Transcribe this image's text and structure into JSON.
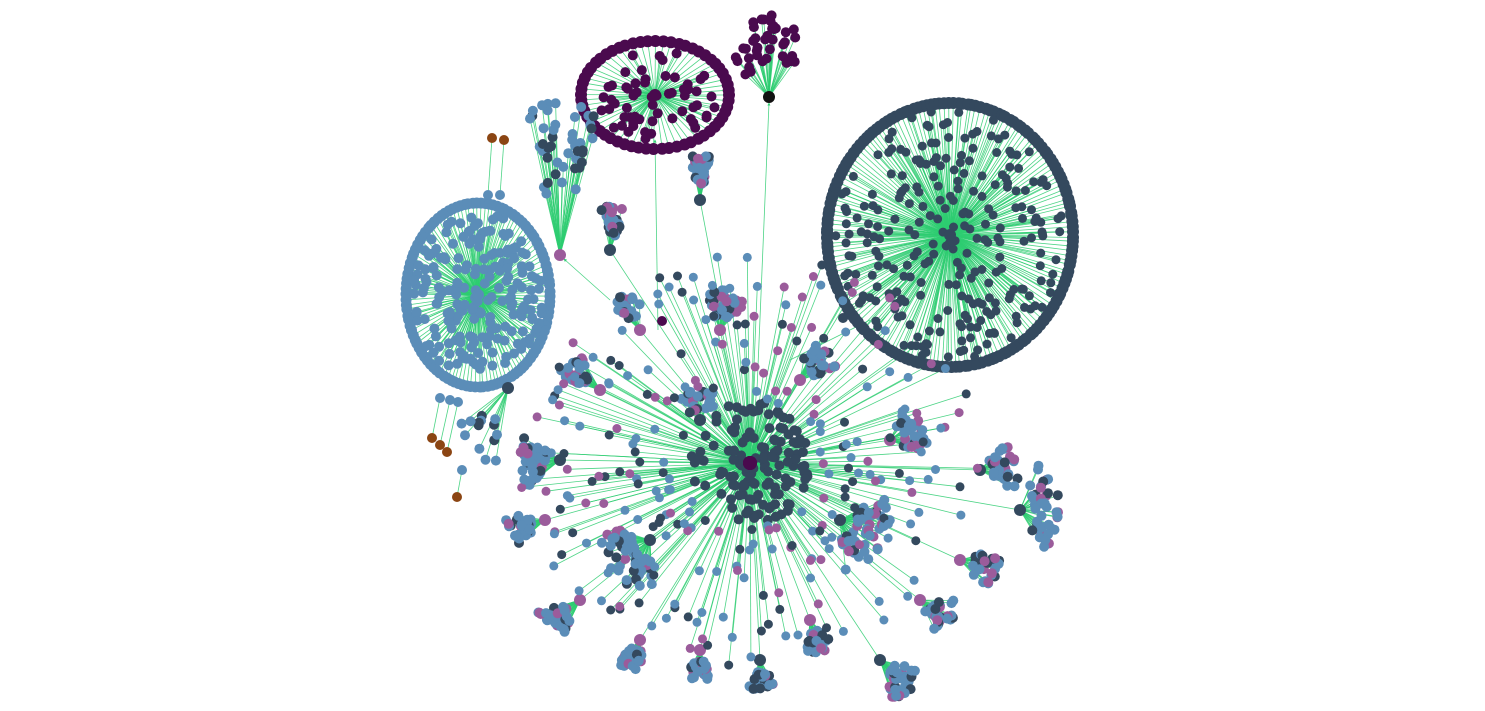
{
  "graph": {
    "layout": "force-directed",
    "directed": true,
    "edge_color": "#2ecc71",
    "node_colors": {
      "blue": "#5b8db8",
      "dark": "#34495e",
      "purple": "#4a0a4e",
      "mauve": "#9b5c9b",
      "brown": "#8b4513"
    },
    "clusters": [
      {
        "id": "central-hub",
        "hub_color": "purple",
        "node_colors": [
          "blue",
          "dark",
          "mauve"
        ],
        "approx_nodes": 900
      },
      {
        "id": "right-dark-cluster",
        "hub_color": "dark",
        "node_colors": [
          "dark"
        ],
        "approx_nodes": 420
      },
      {
        "id": "left-blue-cluster",
        "hub_color": "blue",
        "node_colors": [
          "blue"
        ],
        "approx_nodes": 320
      },
      {
        "id": "top-purple-cluster",
        "hub_color": "purple",
        "node_colors": [
          "purple"
        ],
        "approx_nodes": 110
      },
      {
        "id": "top-small-purple-fan",
        "hub_color": "purple",
        "node_colors": [
          "purple"
        ],
        "approx_nodes": 40
      },
      {
        "id": "upper-left-fan",
        "hub_color": "mauve",
        "node_colors": [
          "blue",
          "dark"
        ],
        "approx_nodes": 45
      },
      {
        "id": "brown-chains",
        "hub_color": "brown",
        "node_colors": [
          "brown",
          "blue"
        ],
        "approx_nodes": 14
      }
    ]
  }
}
